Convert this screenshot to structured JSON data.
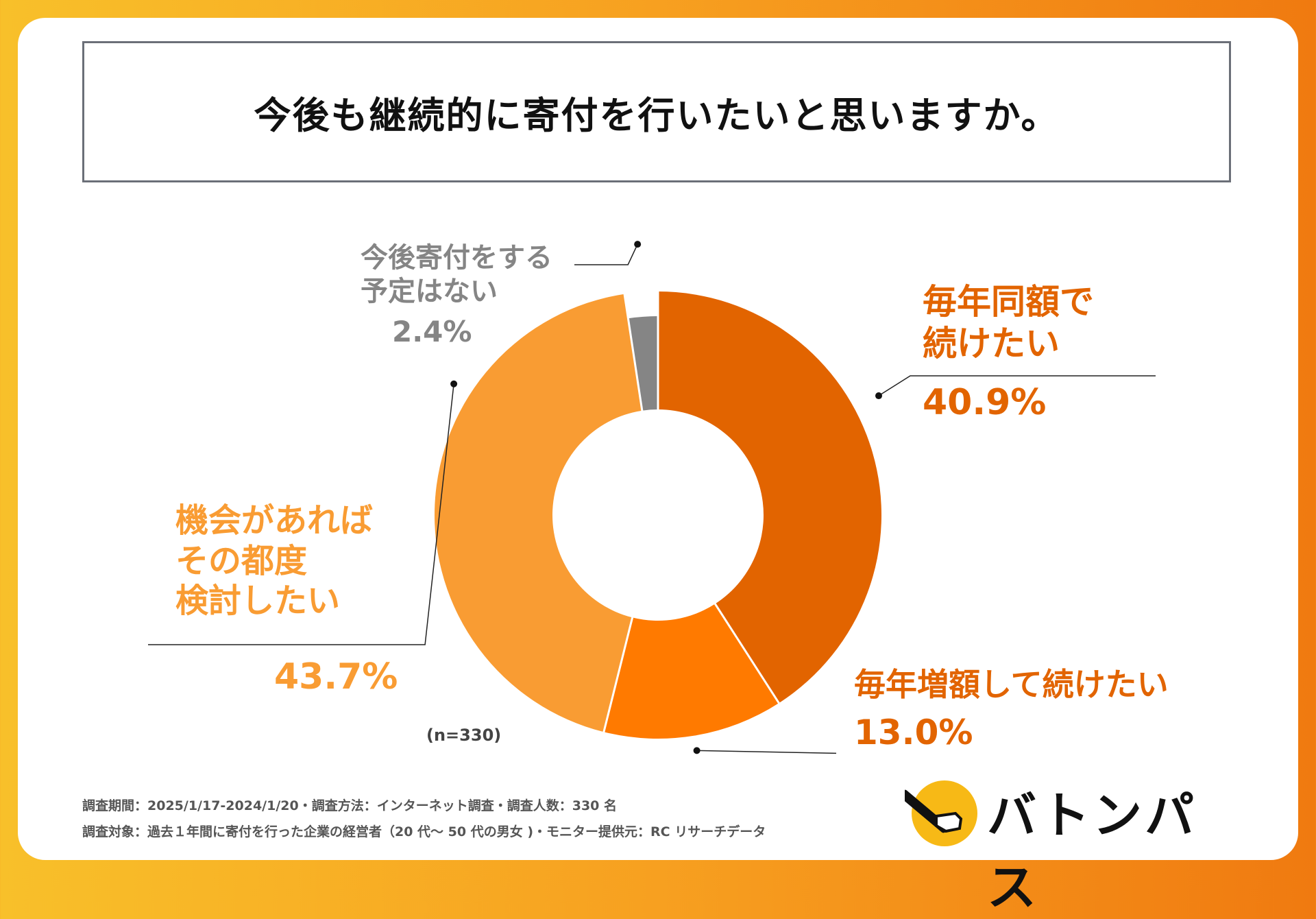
{
  "title": "今後も継続的に寄付を行いたいと思いますか。",
  "n_label": "(n=330)",
  "footer": {
    "line1": "調査期間：2025/1/17-2024/1/20・調査方法：インターネット調査・調査人数：330 名",
    "line2": "調査対象：過去１年間に寄付を行った企業の経営者（20 代〜 50 代の男女 )・モニター提供元：RC リサーチデータ"
  },
  "logo": {
    "text": "バトンパス",
    "icon": "baton-hand-icon"
  },
  "colors": {
    "annual_same": "#e26400",
    "annual_increase": "#ff7a00",
    "case_by_case": "#f99c33",
    "no_plan": "#858585"
  },
  "chart_data": {
    "type": "pie",
    "donut": true,
    "title": "今後も継続的に寄付を行いたいと思いますか。",
    "slices": [
      {
        "label": "毎年同額で続けたい",
        "label_lines": [
          "毎年同額で",
          "続けたい"
        ],
        "value": 40.9,
        "value_label": "40.9%",
        "color": "#e26400"
      },
      {
        "label": "毎年増額して続けたい",
        "label_lines": [
          "毎年増額して続けたい"
        ],
        "value": 13.0,
        "value_label": "13.0%",
        "color": "#ff7a00"
      },
      {
        "label": "機会があればその都度検討したい",
        "label_lines": [
          "機会があれば",
          "その都度",
          "検討したい"
        ],
        "value": 43.7,
        "value_label": "43.7%",
        "color": "#f99c33"
      },
      {
        "label": "今後寄付をする予定はない",
        "label_lines": [
          "今後寄付をする",
          "予定はない"
        ],
        "value": 2.4,
        "value_label": "2.4%",
        "color": "#858585"
      }
    ]
  }
}
